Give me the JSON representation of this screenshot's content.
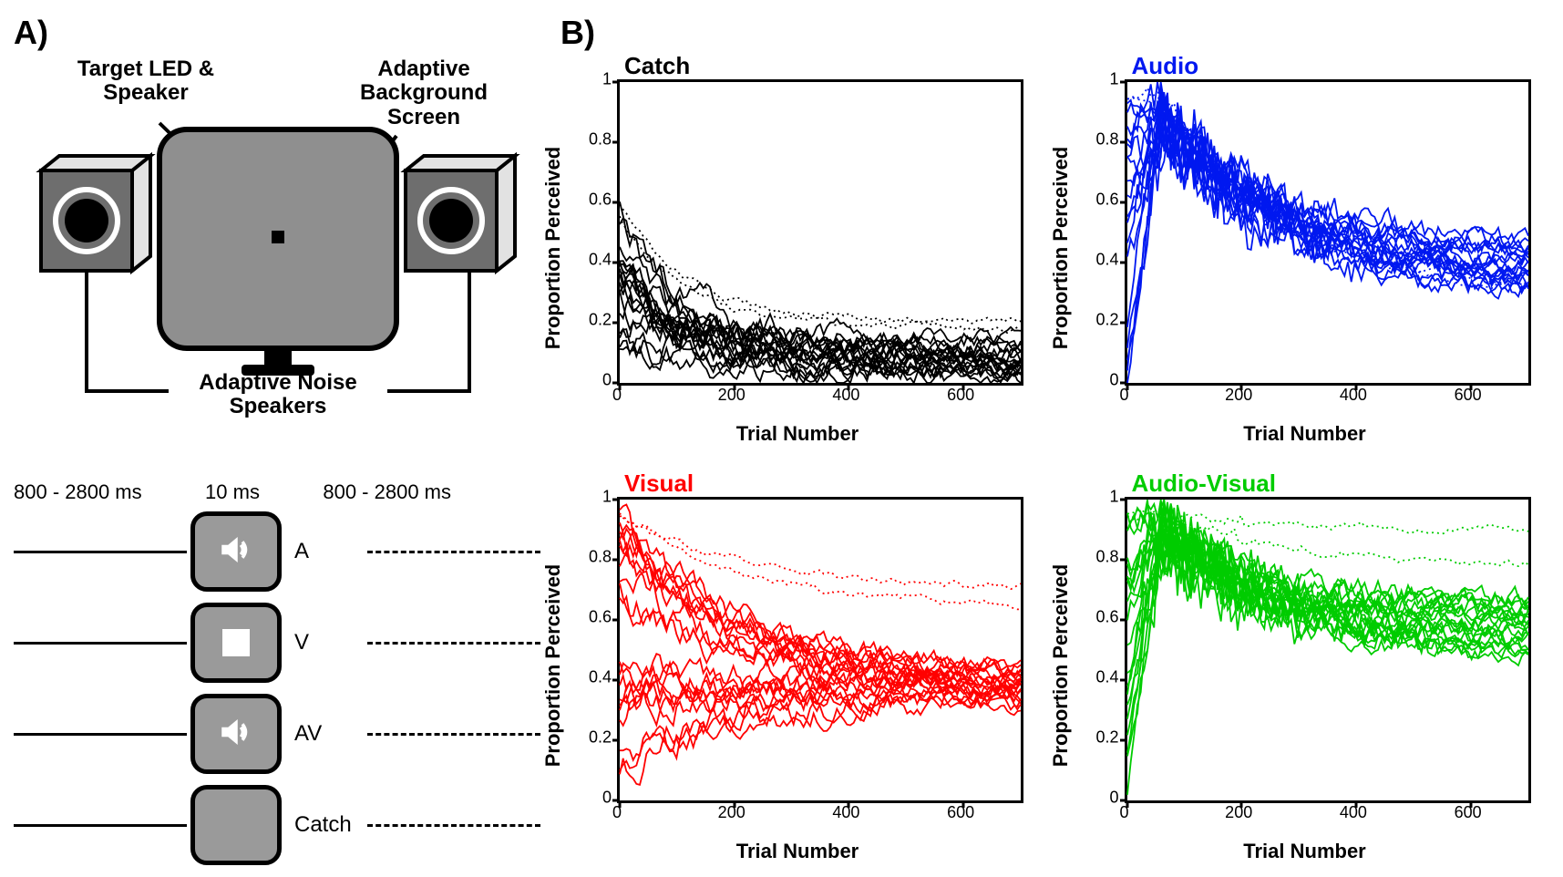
{
  "panelA": {
    "label": "A)",
    "annotations": {
      "targetLed": "Target LED &\nSpeaker",
      "screen": "Adaptive\nBackground\nScreen",
      "noiseSpeakers": "Adaptive Noise\nSpeakers"
    },
    "colors": {
      "monitor_fill": "#8f8f8f",
      "monitor_border": "#000000",
      "speaker_fill": "#6e6e6e",
      "speaker_side": "#e2e2e2",
      "speaker_ring": "#ffffff",
      "speaker_cone": "#000000",
      "led": "#000000",
      "stim_bg": "#9a9a9a",
      "line": "#000000"
    },
    "timeline": {
      "preLabel": "800 - 2800 ms",
      "stimLabel": "10 ms",
      "postLabel": "800 - 2800 ms",
      "conditions": [
        {
          "label": "A",
          "icon": "sound"
        },
        {
          "label": "V",
          "icon": "square"
        },
        {
          "label": "AV",
          "icon": "sound"
        },
        {
          "label": "Catch",
          "icon": "none"
        }
      ]
    }
  },
  "panelB": {
    "label": "B)",
    "ylabel": "Proportion Perceived",
    "xlabel": "Trial Number",
    "xlim": [
      0,
      700
    ],
    "ylim": [
      0,
      1
    ],
    "xticks": [
      0,
      200,
      400,
      600
    ],
    "yticks": [
      0,
      0.2,
      0.4,
      0.6,
      0.8,
      1
    ],
    "line_width": 1.8,
    "axis_fontsize": 22,
    "tick_fontsize": 18,
    "title_fontsize": 26,
    "charts": [
      {
        "title": "Catch",
        "color": "#000000",
        "n_lines": 18,
        "asymptote_range": [
          0.02,
          0.14
        ],
        "start_range": [
          0.0,
          0.6
        ],
        "peak_x": 30,
        "style": "decay",
        "dotted_asymptotes": [
          0.18,
          0.2
        ]
      },
      {
        "title": "Audio",
        "color": "#0018f0",
        "n_lines": 18,
        "asymptote_range": [
          0.28,
          0.46
        ],
        "start_range": [
          0.0,
          1.0
        ],
        "peak_x": 60,
        "style": "overshoot",
        "dotted_asymptotes": [
          0.29,
          0.31
        ]
      },
      {
        "title": "Visual",
        "color": "#ff0000",
        "n_lines": 20,
        "asymptote_range": [
          0.33,
          0.43
        ],
        "start_range": [
          0.05,
          0.98
        ],
        "peak_x": 50,
        "style": "converge",
        "dotted_asymptotes": [
          0.64,
          0.7
        ]
      },
      {
        "title": "Audio-Visual",
        "color": "#00cc00",
        "n_lines": 20,
        "asymptote_range": [
          0.46,
          0.66
        ],
        "start_range": [
          0.0,
          1.0
        ],
        "peak_x": 60,
        "style": "overshoot",
        "dotted_asymptotes": [
          0.78,
          0.9
        ]
      }
    ]
  }
}
